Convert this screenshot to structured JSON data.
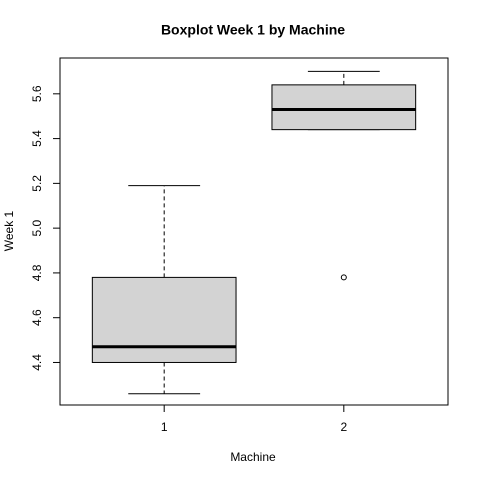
{
  "chart_data": {
    "type": "box",
    "title": "Boxplot Week 1 by Machine",
    "x_label": "Machine",
    "y_label": "Week 1",
    "categories": [
      "1",
      "2"
    ],
    "boxes": [
      {
        "whisker_low": 4.26,
        "q1": 4.4,
        "median": 4.47,
        "q3": 4.78,
        "whisker_high": 5.19
      },
      {
        "whisker_low": 5.44,
        "q1": 5.44,
        "median": 5.53,
        "q3": 5.64,
        "whisker_high": 5.7,
        "outliers": [
          4.78
        ]
      }
    ],
    "color": "#d3d3d3",
    "ylim": [
      4.21,
      5.76
    ],
    "yticks": [
      4.4,
      4.6,
      4.8,
      {
        "value": 5.0,
        "label": "5.0"
      },
      5.2,
      5.4,
      5.6
    ]
  }
}
